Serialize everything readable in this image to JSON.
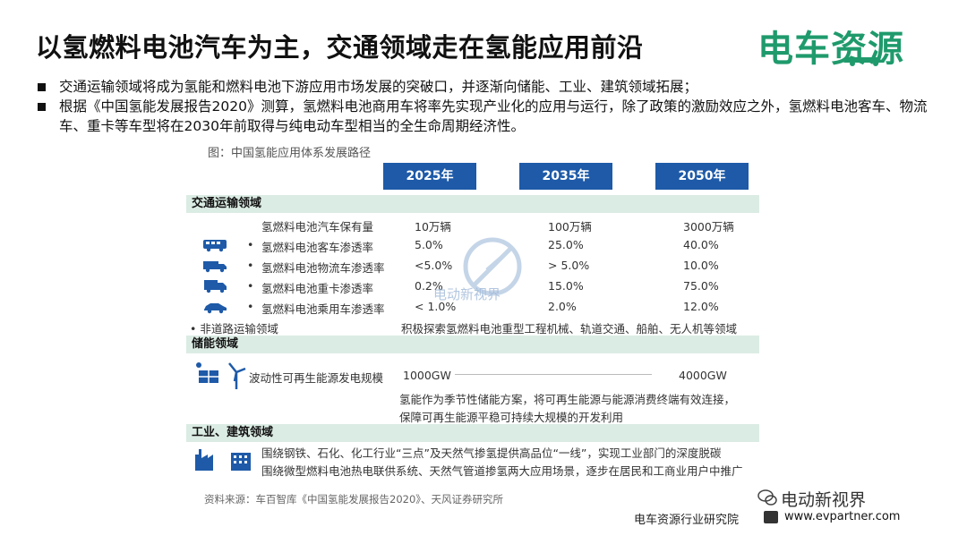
{
  "title": "以氢燃料电池汽车为主，交通领域走在氢能应用前沿",
  "logo_text": "电车资源",
  "bullets": [
    "交通运输领域将成为氢能和燃料电池下游应用市场发展的突破口，并逐渐向储能、工业、建筑领域拓展；",
    "根据《中国氢能发展报告2020》测算，氢燃料电池商用车将率先实现产业化的应用与运行，除了政策的激励效应之外，氢燃料电池客车、物流车、重卡等车型将在2030年前取得与纯电动车型相当的全生命周期经济性。"
  ],
  "figure": {
    "caption": "图：中国氢能应用体系发展路径",
    "years": [
      "2025年",
      "2035年",
      "2050年"
    ],
    "sections": {
      "transport": "交通运输领域",
      "storage": "储能领域",
      "industry": "工业、建筑领域"
    },
    "transport_rows": [
      {
        "label": "氢燃料电池汽车保有量",
        "v2025": "10万辆",
        "v2035": "100万辆",
        "v2050": "3000万辆",
        "icon": ""
      },
      {
        "label": "氢燃料电池客车渗透率",
        "v2025": "5.0%",
        "v2035": "25.0%",
        "v2050": "40.0%",
        "icon": "bus-icon"
      },
      {
        "label": "氢燃料电池物流车渗透率",
        "v2025": "<5.0%",
        "v2035": "> 5.0%",
        "v2050": "10.0%",
        "icon": "van-icon"
      },
      {
        "label": "氢燃料电池重卡渗透率",
        "v2025": "0.2%",
        "v2035": "15.0%",
        "v2050": "75.0%",
        "icon": "truck-icon"
      },
      {
        "label": "氢燃料电池乘用车渗透率",
        "v2025": "< 1.0%",
        "v2035": "2.0%",
        "v2050": "12.0%",
        "icon": "car-icon"
      }
    ],
    "offroad_label": "非道路运输领域",
    "offroad_value": "积极探索氢燃料电池重型工程机械、轨道交通、船舶、无人机等领域",
    "storage_label": "波动性可再生能源发电规模",
    "storage_2025": "1000GW",
    "storage_2050": "4000GW",
    "storage_note": [
      "氢能作为季节性储能方案，将可再生能源与能源消费终端有效连接，",
      "保障可再生能源平稳可持续大规模的开发利用"
    ],
    "industry_note": [
      "围绕钢铁、石化、化工行业“三点”及天然气掺氢提供高品位“一线”，实现工业部门的深度脱碳",
      "围绕微型燃料电池热电联供系统、天然气管道掺氢两大应用场景，逐步在居民和工商业用户中推广"
    ],
    "source": "资料来源：车百智库《中国氢能发展报告2020》、天风证券研究所",
    "watermark_text": "电动新视界"
  },
  "footer": {
    "institute": "电车资源行业研究院",
    "url": "www.evpartner.com",
    "wechat": "电动新视界"
  },
  "colors": {
    "year_header": "#1e5aa8",
    "section_band": "#dbece4",
    "logo": "#1f9a6c",
    "icons": "#1e5aa8"
  }
}
